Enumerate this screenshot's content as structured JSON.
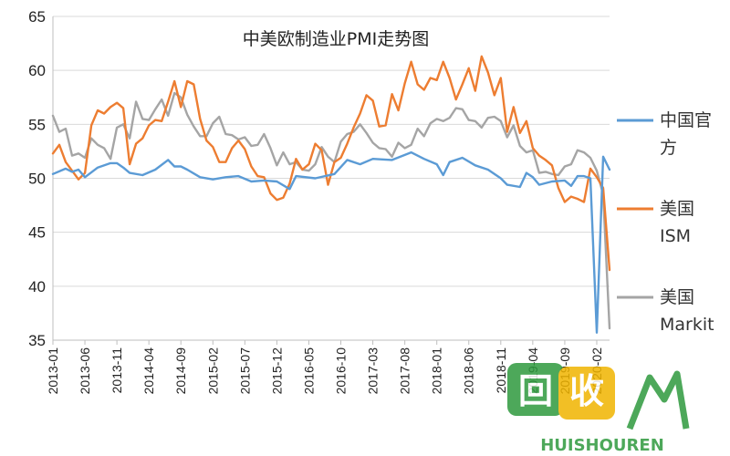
{
  "chart_data": {
    "type": "line",
    "title": "中美欧制造业PMI走势图",
    "ylim": [
      35,
      65
    ],
    "yticks": [
      35,
      40,
      45,
      50,
      55,
      60,
      65
    ],
    "xlim": [
      "2013-01",
      "2020-04"
    ],
    "xticks": [
      "2013-01",
      "2013-06",
      "2013-11",
      "2014-04",
      "2014-09",
      "2015-02",
      "2015-07",
      "2015-12",
      "2016-05",
      "2016-10",
      "2017-03",
      "2017-08",
      "2018-01",
      "2018-06",
      "2018-11",
      "2019-04",
      "2019-09",
      "2020-02"
    ],
    "grid": true,
    "legend_position": "right",
    "series": [
      {
        "name": "中国官方",
        "legend_lines": [
          "中国官",
          "方"
        ],
        "color": "#5b9bd5",
        "points": [
          [
            "2013-01",
            50.4
          ],
          [
            "2013-03",
            50.9
          ],
          [
            "2013-04",
            50.6
          ],
          [
            "2013-05",
            50.8
          ],
          [
            "2013-06",
            50.1
          ],
          [
            "2013-08",
            51.0
          ],
          [
            "2013-10",
            51.4
          ],
          [
            "2013-11",
            51.4
          ],
          [
            "2013-12",
            51.0
          ],
          [
            "2014-01",
            50.5
          ],
          [
            "2014-03",
            50.3
          ],
          [
            "2014-05",
            50.8
          ],
          [
            "2014-07",
            51.7
          ],
          [
            "2014-08",
            51.1
          ],
          [
            "2014-09",
            51.1
          ],
          [
            "2014-10",
            50.8
          ],
          [
            "2014-12",
            50.1
          ],
          [
            "2015-02",
            49.9
          ],
          [
            "2015-04",
            50.1
          ],
          [
            "2015-06",
            50.2
          ],
          [
            "2015-08",
            49.7
          ],
          [
            "2015-10",
            49.8
          ],
          [
            "2015-12",
            49.7
          ],
          [
            "2016-02",
            49.0
          ],
          [
            "2016-03",
            50.2
          ],
          [
            "2016-06",
            50.0
          ],
          [
            "2016-09",
            50.4
          ],
          [
            "2016-11",
            51.7
          ],
          [
            "2017-01",
            51.3
          ],
          [
            "2017-03",
            51.8
          ],
          [
            "2017-06",
            51.7
          ],
          [
            "2017-09",
            52.4
          ],
          [
            "2017-11",
            51.8
          ],
          [
            "2018-01",
            51.3
          ],
          [
            "2018-02",
            50.3
          ],
          [
            "2018-03",
            51.5
          ],
          [
            "2018-05",
            51.9
          ],
          [
            "2018-07",
            51.2
          ],
          [
            "2018-09",
            50.8
          ],
          [
            "2018-11",
            50.0
          ],
          [
            "2018-12",
            49.4
          ],
          [
            "2019-02",
            49.2
          ],
          [
            "2019-03",
            50.5
          ],
          [
            "2019-04",
            50.1
          ],
          [
            "2019-05",
            49.4
          ],
          [
            "2019-07",
            49.7
          ],
          [
            "2019-09",
            49.8
          ],
          [
            "2019-10",
            49.3
          ],
          [
            "2019-11",
            50.2
          ],
          [
            "2019-12",
            50.2
          ],
          [
            "2020-01",
            50.0
          ],
          [
            "2020-02",
            35.7
          ],
          [
            "2020-03",
            52.0
          ],
          [
            "2020-04",
            50.8
          ]
        ]
      },
      {
        "name": "美国ISM",
        "legend_lines": [
          "美国",
          "ISM"
        ],
        "color": "#ed7d31",
        "points": [
          [
            "2013-01",
            52.3
          ],
          [
            "2013-02",
            53.1
          ],
          [
            "2013-03",
            51.5
          ],
          [
            "2013-04",
            50.7
          ],
          [
            "2013-05",
            49.9
          ],
          [
            "2013-06",
            50.5
          ],
          [
            "2013-07",
            54.9
          ],
          [
            "2013-08",
            56.3
          ],
          [
            "2013-09",
            56.0
          ],
          [
            "2013-10",
            56.6
          ],
          [
            "2013-11",
            57.0
          ],
          [
            "2013-12",
            56.5
          ],
          [
            "2014-01",
            51.3
          ],
          [
            "2014-02",
            53.2
          ],
          [
            "2014-03",
            53.7
          ],
          [
            "2014-04",
            54.9
          ],
          [
            "2014-05",
            55.4
          ],
          [
            "2014-06",
            55.3
          ],
          [
            "2014-07",
            57.1
          ],
          [
            "2014-08",
            59.0
          ],
          [
            "2014-09",
            56.6
          ],
          [
            "2014-10",
            59.0
          ],
          [
            "2014-11",
            58.7
          ],
          [
            "2014-12",
            55.5
          ],
          [
            "2015-01",
            53.5
          ],
          [
            "2015-02",
            52.9
          ],
          [
            "2015-03",
            51.5
          ],
          [
            "2015-04",
            51.5
          ],
          [
            "2015-05",
            52.8
          ],
          [
            "2015-06",
            53.5
          ],
          [
            "2015-07",
            52.7
          ],
          [
            "2015-08",
            51.1
          ],
          [
            "2015-09",
            50.2
          ],
          [
            "2015-10",
            50.1
          ],
          [
            "2015-11",
            48.6
          ],
          [
            "2015-12",
            48.0
          ],
          [
            "2016-01",
            48.2
          ],
          [
            "2016-02",
            49.5
          ],
          [
            "2016-03",
            51.8
          ],
          [
            "2016-04",
            50.8
          ],
          [
            "2016-05",
            51.3
          ],
          [
            "2016-06",
            53.2
          ],
          [
            "2016-07",
            52.6
          ],
          [
            "2016-08",
            49.4
          ],
          [
            "2016-09",
            51.5
          ],
          [
            "2016-10",
            51.9
          ],
          [
            "2016-11",
            53.2
          ],
          [
            "2016-12",
            54.7
          ],
          [
            "2017-01",
            56.0
          ],
          [
            "2017-02",
            57.7
          ],
          [
            "2017-03",
            57.2
          ],
          [
            "2017-04",
            54.8
          ],
          [
            "2017-05",
            54.9
          ],
          [
            "2017-06",
            57.8
          ],
          [
            "2017-07",
            56.3
          ],
          [
            "2017-08",
            58.8
          ],
          [
            "2017-09",
            60.8
          ],
          [
            "2017-10",
            58.7
          ],
          [
            "2017-11",
            58.2
          ],
          [
            "2017-12",
            59.3
          ],
          [
            "2018-01",
            59.1
          ],
          [
            "2018-02",
            60.8
          ],
          [
            "2018-03",
            59.3
          ],
          [
            "2018-04",
            57.3
          ],
          [
            "2018-05",
            58.7
          ],
          [
            "2018-06",
            60.2
          ],
          [
            "2018-07",
            58.1
          ],
          [
            "2018-08",
            61.3
          ],
          [
            "2018-09",
            59.8
          ],
          [
            "2018-10",
            57.7
          ],
          [
            "2018-11",
            59.3
          ],
          [
            "2018-12",
            54.3
          ],
          [
            "2019-01",
            56.6
          ],
          [
            "2019-02",
            54.2
          ],
          [
            "2019-03",
            55.3
          ],
          [
            "2019-04",
            52.8
          ],
          [
            "2019-05",
            52.1
          ],
          [
            "2019-06",
            51.7
          ],
          [
            "2019-07",
            51.2
          ],
          [
            "2019-08",
            49.1
          ],
          [
            "2019-09",
            47.8
          ],
          [
            "2019-10",
            48.3
          ],
          [
            "2019-11",
            48.1
          ],
          [
            "2019-12",
            47.8
          ],
          [
            "2020-01",
            50.9
          ],
          [
            "2020-02",
            50.1
          ],
          [
            "2020-03",
            49.1
          ],
          [
            "2020-04",
            41.5
          ]
        ]
      },
      {
        "name": "美国Markit",
        "legend_lines": [
          "美国",
          "Markit"
        ],
        "color": "#a5a5a5",
        "points": [
          [
            "2013-01",
            55.8
          ],
          [
            "2013-02",
            54.3
          ],
          [
            "2013-03",
            54.6
          ],
          [
            "2013-04",
            52.1
          ],
          [
            "2013-05",
            52.3
          ],
          [
            "2013-06",
            51.9
          ],
          [
            "2013-07",
            53.7
          ],
          [
            "2013-08",
            53.1
          ],
          [
            "2013-09",
            52.8
          ],
          [
            "2013-10",
            51.8
          ],
          [
            "2013-11",
            54.7
          ],
          [
            "2013-12",
            55.0
          ],
          [
            "2014-01",
            53.7
          ],
          [
            "2014-02",
            57.1
          ],
          [
            "2014-03",
            55.5
          ],
          [
            "2014-04",
            55.4
          ],
          [
            "2014-05",
            56.4
          ],
          [
            "2014-06",
            57.3
          ],
          [
            "2014-07",
            55.8
          ],
          [
            "2014-08",
            57.9
          ],
          [
            "2014-09",
            57.5
          ],
          [
            "2014-10",
            55.9
          ],
          [
            "2014-11",
            54.8
          ],
          [
            "2014-12",
            53.9
          ],
          [
            "2015-01",
            53.9
          ],
          [
            "2015-02",
            55.1
          ],
          [
            "2015-03",
            55.7
          ],
          [
            "2015-04",
            54.1
          ],
          [
            "2015-05",
            54.0
          ],
          [
            "2015-06",
            53.6
          ],
          [
            "2015-07",
            53.8
          ],
          [
            "2015-08",
            53.0
          ],
          [
            "2015-09",
            53.1
          ],
          [
            "2015-10",
            54.1
          ],
          [
            "2015-11",
            52.8
          ],
          [
            "2015-12",
            51.2
          ],
          [
            "2016-01",
            52.4
          ],
          [
            "2016-02",
            51.3
          ],
          [
            "2016-03",
            51.5
          ],
          [
            "2016-04",
            50.8
          ],
          [
            "2016-05",
            50.7
          ],
          [
            "2016-06",
            51.3
          ],
          [
            "2016-07",
            52.9
          ],
          [
            "2016-08",
            52.0
          ],
          [
            "2016-09",
            51.5
          ],
          [
            "2016-10",
            53.4
          ],
          [
            "2016-11",
            54.1
          ],
          [
            "2016-12",
            54.3
          ],
          [
            "2017-01",
            55.0
          ],
          [
            "2017-02",
            54.2
          ],
          [
            "2017-03",
            53.3
          ],
          [
            "2017-04",
            52.8
          ],
          [
            "2017-05",
            52.7
          ],
          [
            "2017-06",
            52.0
          ],
          [
            "2017-07",
            53.3
          ],
          [
            "2017-08",
            52.8
          ],
          [
            "2017-09",
            53.1
          ],
          [
            "2017-10",
            54.6
          ],
          [
            "2017-11",
            53.9
          ],
          [
            "2017-12",
            55.1
          ],
          [
            "2018-01",
            55.5
          ],
          [
            "2018-02",
            55.3
          ],
          [
            "2018-03",
            55.6
          ],
          [
            "2018-04",
            56.5
          ],
          [
            "2018-05",
            56.4
          ],
          [
            "2018-06",
            55.4
          ],
          [
            "2018-07",
            55.3
          ],
          [
            "2018-08",
            54.7
          ],
          [
            "2018-09",
            55.6
          ],
          [
            "2018-10",
            55.7
          ],
          [
            "2018-11",
            55.3
          ],
          [
            "2018-12",
            53.8
          ],
          [
            "2019-01",
            54.9
          ],
          [
            "2019-02",
            53.0
          ],
          [
            "2019-03",
            52.4
          ],
          [
            "2019-04",
            52.6
          ],
          [
            "2019-05",
            50.5
          ],
          [
            "2019-06",
            50.6
          ],
          [
            "2019-07",
            50.4
          ],
          [
            "2019-08",
            50.3
          ],
          [
            "2019-09",
            51.1
          ],
          [
            "2019-10",
            51.3
          ],
          [
            "2019-11",
            52.6
          ],
          [
            "2019-12",
            52.4
          ],
          [
            "2020-01",
            51.9
          ],
          [
            "2020-02",
            50.7
          ],
          [
            "2020-03",
            48.5
          ],
          [
            "2020-04",
            36.1
          ]
        ]
      }
    ]
  },
  "watermark": {
    "logo_text": "回收",
    "caption": "HUISHOUREN"
  }
}
